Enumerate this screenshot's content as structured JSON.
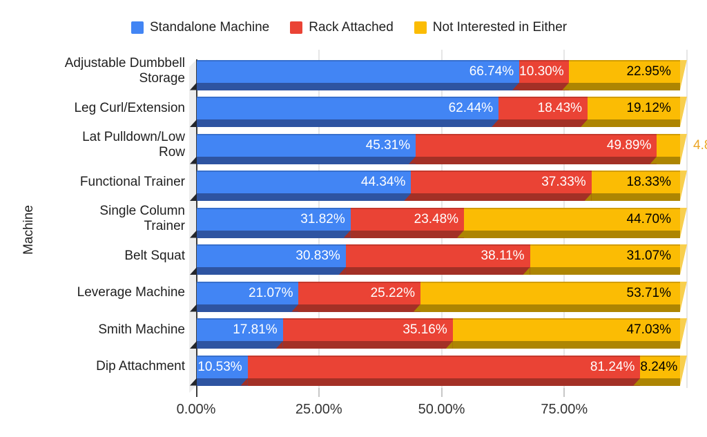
{
  "legend": {
    "items": [
      {
        "label": "Standalone Machine",
        "color": "#4285f4"
      },
      {
        "label": "Rack Attached",
        "color": "#ea4335"
      },
      {
        "label": "Not Interested in Either",
        "color": "#fbbc04"
      }
    ]
  },
  "y_axis": {
    "title": "Machine"
  },
  "x_axis": {
    "tick_labels": [
      "0.00%",
      "25.00%",
      "50.00%",
      "75.00%"
    ],
    "min": 0,
    "max": 100,
    "unlabeled_last_gridline": true
  },
  "colors": {
    "series_face": [
      "#4285f4",
      "#ea4335",
      "#fbbc04"
    ],
    "series_dark": [
      "#2e54a1",
      "#a33026",
      "#ad8502"
    ],
    "end_cap": "#f8cf4e",
    "gridline": "#e6e6e6",
    "wall": "#ededed",
    "baseline": "#3c3c3c",
    "label_on_blue": "#ffffff",
    "label_on_red": "#ffffff",
    "label_on_yellow": "#000000",
    "outside_label": "#eca627"
  },
  "chart_data": {
    "type": "bar",
    "orientation": "horizontal",
    "stacked": true,
    "title": "",
    "xlabel": "",
    "ylabel": "Machine",
    "xlim": [
      0,
      100
    ],
    "grid": true,
    "legend_position": "top",
    "categories": [
      "Adjustable Dumbbell Storage",
      "Leg Curl/Extension",
      "Lat Pulldown/Low Row",
      "Functional Trainer",
      "Single Column Trainer",
      "Belt Squat",
      "Leverage Machine",
      "Smith Machine",
      "Dip Attachment"
    ],
    "category_display_lines": [
      [
        "Adjustable Dumbbell",
        "Storage"
      ],
      [
        "Leg Curl/Extension"
      ],
      [
        "Lat Pulldown/Low",
        "Row"
      ],
      [
        "Functional Trainer"
      ],
      [
        "Single Column",
        "Trainer"
      ],
      [
        "Belt Squat"
      ],
      [
        "Leverage Machine"
      ],
      [
        "Smith Machine"
      ],
      [
        "Dip Attachment"
      ]
    ],
    "series": [
      {
        "name": "Standalone Machine",
        "color": "#4285f4",
        "values": [
          66.74,
          62.44,
          45.31,
          44.34,
          31.82,
          30.83,
          21.07,
          17.81,
          10.53
        ]
      },
      {
        "name": "Rack Attached",
        "color": "#ea4335",
        "values": [
          10.3,
          18.43,
          49.89,
          37.33,
          23.48,
          38.11,
          25.22,
          35.16,
          81.24
        ]
      },
      {
        "name": "Not Interested in Either",
        "color": "#fbbc04",
        "values": [
          22.95,
          19.12,
          4.8,
          18.33,
          44.7,
          31.07,
          53.71,
          47.03,
          8.24
        ]
      }
    ],
    "data_labels": [
      [
        "66.74%",
        "10.30%",
        "22.95%"
      ],
      [
        "62.44%",
        "18.43%",
        "19.12%"
      ],
      [
        "45.31%",
        "49.89%",
        "4.8"
      ],
      [
        "44.34%",
        "37.33%",
        "18.33%"
      ],
      [
        "31.82%",
        "23.48%",
        "44.70%"
      ],
      [
        "30.83%",
        "38.11%",
        "31.07%"
      ],
      [
        "21.07%",
        "25.22%",
        "53.71%"
      ],
      [
        "17.81%",
        "35.16%",
        "47.03%"
      ],
      [
        "10.53%",
        "81.24%",
        "8.24%"
      ]
    ],
    "outside_labels": [
      {
        "row": 2,
        "series": 2,
        "text": "4.8"
      }
    ]
  }
}
